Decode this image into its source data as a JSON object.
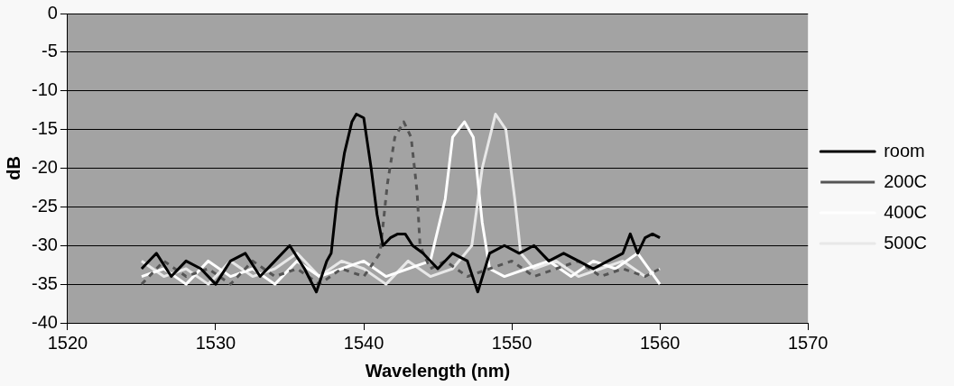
{
  "chart_data": {
    "type": "line",
    "xlabel": "Wavelength (nm)",
    "ylabel": "dB",
    "xlim": [
      1520,
      1570
    ],
    "xticks": [
      1520,
      1530,
      1540,
      1550,
      1560,
      1570
    ],
    "ylim": [
      -40,
      0
    ],
    "yticks": [
      0,
      -5,
      -10,
      -15,
      -20,
      -25,
      -30,
      -35,
      -40
    ],
    "grid": "y",
    "legend": "right",
    "marker": "none",
    "series": [
      {
        "name": "room",
        "color": "#000000",
        "line_style": "solid",
        "x": [
          1525,
          1526,
          1527,
          1528,
          1529,
          1530,
          1531,
          1532,
          1533,
          1534,
          1535,
          1536,
          1536.8,
          1537.5,
          1537.8,
          1538.2,
          1538.7,
          1539.2,
          1539.5,
          1540,
          1540.5,
          1540.9,
          1541.3,
          1541.8,
          1542.3,
          1542.8,
          1543.3,
          1544,
          1545,
          1546,
          1547,
          1547.7,
          1548.5,
          1549.5,
          1550.5,
          1551.5,
          1552.5,
          1553.5,
          1554.5,
          1555.5,
          1556.5,
          1557.5,
          1558,
          1558.5,
          1559,
          1559.5,
          1560
        ],
        "values": [
          -33,
          -31,
          -34,
          -32,
          -33,
          -35,
          -32,
          -31,
          -34,
          -32,
          -30,
          -33,
          -36,
          -32,
          -31,
          -24,
          -18,
          -14,
          -13,
          -13.5,
          -20,
          -26,
          -30,
          -29,
          -28.5,
          -28.5,
          -30,
          -31,
          -33,
          -31,
          -32,
          -36,
          -31,
          -30,
          -31,
          -30,
          -32,
          -31,
          -32,
          -33,
          -32,
          -31,
          -28.5,
          -31,
          -29,
          -28.5,
          -29
        ]
      },
      {
        "name": "200C",
        "color": "#555555",
        "line_style": "dashed",
        "x": [
          1525,
          1526.5,
          1528,
          1529.5,
          1531,
          1532.5,
          1534,
          1535.5,
          1537,
          1538.5,
          1540,
          1541.1,
          1541.6,
          1542.1,
          1542.7,
          1543.2,
          1543.6,
          1543.8,
          1544.5,
          1545.5,
          1547,
          1548.5,
          1550,
          1551.5,
          1553,
          1554.5,
          1556,
          1557.5,
          1559,
          1560
        ],
        "values": [
          -35,
          -32,
          -34,
          -33,
          -35,
          -32,
          -34,
          -33,
          -35,
          -33,
          -34,
          -31,
          -22,
          -16,
          -14,
          -16,
          -23,
          -30,
          -33,
          -32,
          -34,
          -33,
          -32,
          -34,
          -33,
          -32,
          -34,
          -33,
          -34,
          -33
        ]
      },
      {
        "name": "400C",
        "color": "#ffffff",
        "line_style": "solid",
        "x": [
          1525,
          1526.5,
          1528,
          1529.5,
          1531,
          1532.5,
          1534,
          1535.5,
          1537,
          1538.5,
          1540,
          1541.5,
          1543,
          1544.5,
          1545.5,
          1546,
          1546.8,
          1547.4,
          1548,
          1548.5,
          1549.5,
          1551,
          1552.5,
          1554,
          1555.5,
          1557,
          1558.5,
          1560
        ],
        "values": [
          -34,
          -33,
          -35,
          -32,
          -34,
          -33,
          -35,
          -32,
          -34,
          -33,
          -32,
          -34,
          -33,
          -32,
          -24,
          -16,
          -14,
          -16,
          -27,
          -33,
          -34,
          -33,
          -32,
          -34,
          -32,
          -33,
          -31,
          -35
        ]
      },
      {
        "name": "500C",
        "color": "#e8e8e8",
        "line_style": "solid",
        "x": [
          1525,
          1526.5,
          1528,
          1529.5,
          1531,
          1532.5,
          1534,
          1535.5,
          1537,
          1538.5,
          1540,
          1541.5,
          1543,
          1544.5,
          1546,
          1547.3,
          1548,
          1548.9,
          1549.6,
          1550.2,
          1550.6,
          1551.5,
          1553,
          1554.5,
          1556,
          1557.5,
          1559,
          1560
        ],
        "values": [
          -32,
          -34,
          -33,
          -35,
          -32,
          -34,
          -33,
          -31,
          -34,
          -32,
          -33,
          -35,
          -32,
          -34,
          -33,
          -30,
          -20,
          -13,
          -15,
          -24,
          -31,
          -33,
          -32,
          -34,
          -33,
          -32,
          -34,
          -33
        ]
      }
    ]
  }
}
